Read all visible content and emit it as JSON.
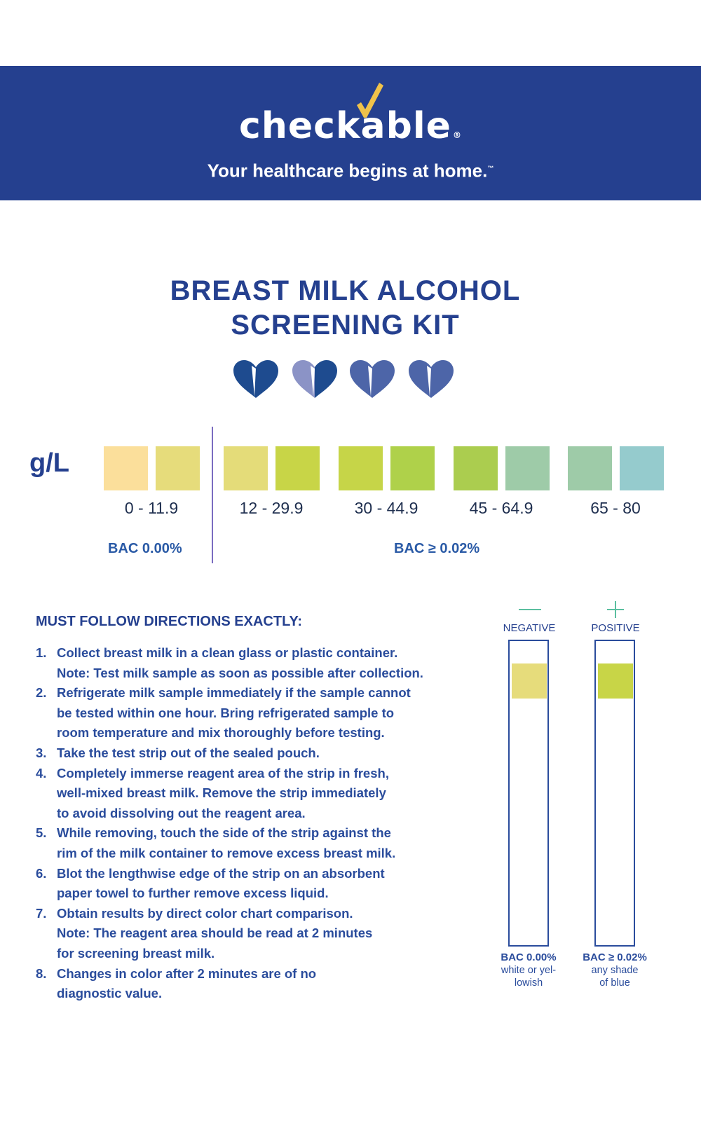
{
  "header": {
    "brand": "checkable",
    "registered_mark": "®",
    "tagline": "Your healthcare begins at home.",
    "trademark": "™",
    "background": "#25408f",
    "accent": "#f0c24a"
  },
  "title": {
    "line1": "BREAST MILK ALCOHOL",
    "line2": "SCREENING KIT"
  },
  "hearts": [
    "heart-icon",
    "heart-icon",
    "heart-icon",
    "heart-icon"
  ],
  "chart": {
    "unit": "g/L",
    "ranges": [
      "0 - 11.9",
      "12 - 29.9",
      "30 - 44.9",
      "45 - 64.9",
      "65 - 80"
    ],
    "swatch_colors": [
      [
        "#fbdf9b",
        "#e6dc7b"
      ],
      [
        "#e4dc79",
        "#c8d547"
      ],
      [
        "#c6d548",
        "#afd14a"
      ],
      [
        "#abcd4f",
        "#9ecba8"
      ],
      [
        "#9ecba8",
        "#95cbcd"
      ]
    ],
    "bac_negative": "BAC 0.00%",
    "bac_positive": "BAC ≥ 0.02%"
  },
  "directions": {
    "heading": "MUST FOLLOW DIRECTIONS EXACTLY:",
    "steps": [
      {
        "num": "1.",
        "lines": [
          "Collect breast milk in a clean glass or plastic container.",
          "Note: Test milk sample as soon as possible after collection."
        ]
      },
      {
        "num": "2.",
        "lines": [
          "Refrigerate milk sample immediately if the sample cannot",
          "be tested within one hour. Bring refrigerated sample to",
          "room temperature and mix thoroughly before testing."
        ]
      },
      {
        "num": "3.",
        "lines": [
          "Take the test strip out of the sealed pouch."
        ]
      },
      {
        "num": "4.",
        "lines": [
          "Completely immerse reagent area of the strip in fresh,",
          "well-mixed breast milk. Remove the strip immediately",
          "to avoid dissolving out the reagent area."
        ]
      },
      {
        "num": "5.",
        "lines": [
          "While removing, touch the side of the strip against the",
          "rim of the milk container to remove excess breast milk."
        ]
      },
      {
        "num": "6.",
        "lines": [
          "Blot the lengthwise edge of the strip on an absorbent",
          "paper towel to further remove excess liquid."
        ]
      },
      {
        "num": "7.",
        "lines": [
          "Obtain results by direct color chart comparison.",
          "Note: The reagent area should be read at 2 minutes",
          "for screening breast milk."
        ]
      },
      {
        "num": "8.",
        "lines": [
          "Changes in color after 2 minutes are of no",
          "diagnostic value."
        ]
      }
    ]
  },
  "strips": {
    "negative": {
      "sign": "—",
      "label": "NEGATIVE",
      "pad_color": "#e6dc7b",
      "bac": "BAC 0.00%",
      "desc1": "white or yel-",
      "desc2": "lowish"
    },
    "positive": {
      "sign": "+",
      "label": "POSITIVE",
      "pad_color": "#c8d547",
      "bac": "BAC ≥ 0.02%",
      "desc1": "any shade",
      "desc2": "of blue"
    }
  }
}
